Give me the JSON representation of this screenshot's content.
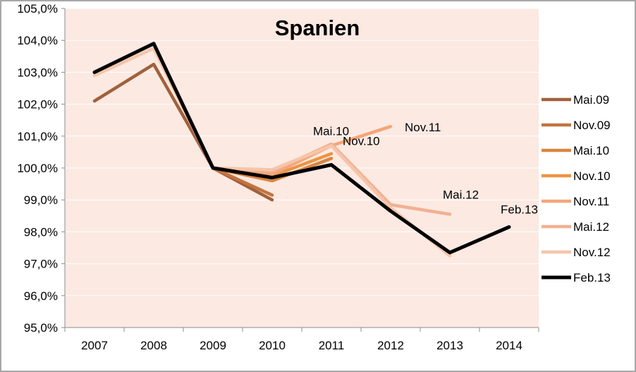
{
  "chart_data": {
    "type": "line",
    "title": "Spanien",
    "xlabel": "",
    "ylabel": "",
    "ylim": [
      95,
      105
    ],
    "y_tick_format": "percent_comma_1",
    "y_ticks": [
      95,
      96,
      97,
      98,
      99,
      100,
      101,
      102,
      103,
      104,
      105
    ],
    "y_tick_labels": [
      "95,0%",
      "96,0%",
      "97,0%",
      "98,0%",
      "99,0%",
      "100,0%",
      "101,0%",
      "102,0%",
      "103,0%",
      "104,0%",
      "105,0%"
    ],
    "categories": [
      "2007",
      "2008",
      "2009",
      "2010",
      "2011",
      "2012",
      "2013",
      "2014"
    ],
    "grid": true,
    "legend": "right",
    "background": "#fbe9e2",
    "series": [
      {
        "name": "Mai.09",
        "color": "#a0613a",
        "width": 4.5,
        "values": [
          102.1,
          103.25,
          100.0,
          99.0,
          null,
          null,
          null,
          null
        ],
        "label": ""
      },
      {
        "name": "Nov.09",
        "color": "#c27540",
        "width": 4.5,
        "values": [
          null,
          null,
          100.0,
          99.15,
          null,
          null,
          null,
          null
        ],
        "label": ""
      },
      {
        "name": "Mai.10",
        "color": "#d9853f",
        "width": 4.5,
        "values": [
          null,
          null,
          100.0,
          99.6,
          100.3,
          null,
          null,
          null
        ],
        "label": "Mai.10"
      },
      {
        "name": "Nov.10",
        "color": "#ed9442",
        "width": 4.5,
        "values": [
          null,
          null,
          100.0,
          99.75,
          100.45,
          null,
          null,
          null
        ],
        "label": "Nov.10"
      },
      {
        "name": "Nov.11",
        "color": "#f4a67a",
        "width": 4.5,
        "values": [
          null,
          null,
          100.0,
          99.8,
          100.7,
          101.3,
          null,
          null
        ],
        "label": "Nov.11"
      },
      {
        "name": "Mai.12",
        "color": "#f1b191",
        "width": 4.5,
        "values": [
          null,
          null,
          100.0,
          99.9,
          100.75,
          98.85,
          98.55,
          null
        ],
        "label": "Mai.12"
      },
      {
        "name": "Nov.12",
        "color": "#f5c5ab",
        "width": 4.5,
        "values": [
          102.9,
          103.75,
          100.0,
          99.95,
          100.7,
          98.75,
          97.25,
          null
        ],
        "label": ""
      },
      {
        "name": "Feb.13",
        "color": "#000000",
        "width": 5,
        "values": [
          103.0,
          103.9,
          100.0,
          99.7,
          100.1,
          98.65,
          97.35,
          98.15
        ],
        "label": "Feb.13"
      }
    ]
  }
}
